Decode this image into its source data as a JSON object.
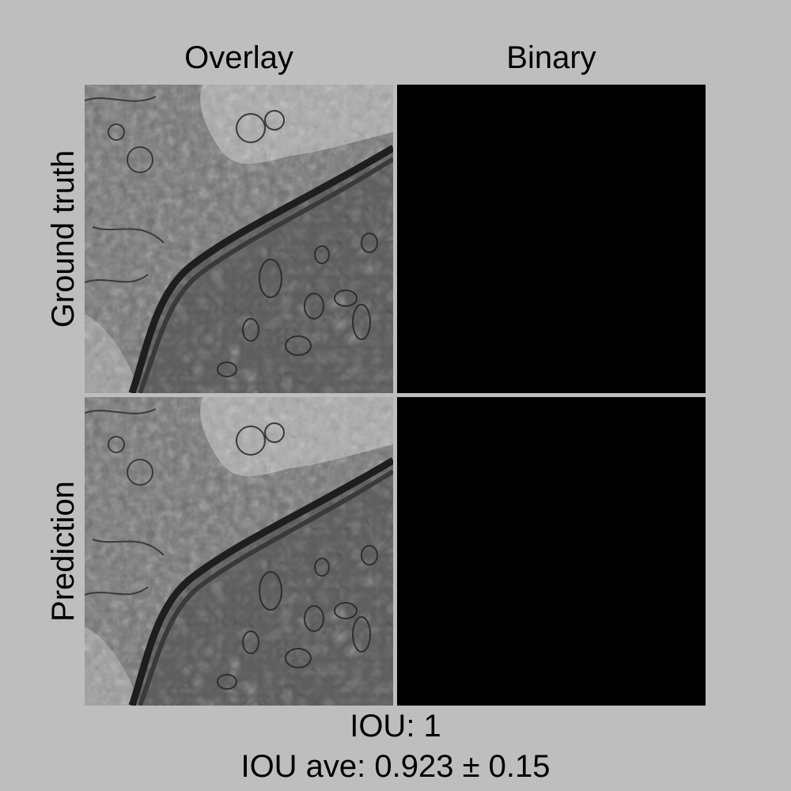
{
  "columns": {
    "overlay": "Overlay",
    "binary": "Binary"
  },
  "rows": {
    "ground_truth": "Ground truth",
    "prediction": "Prediction"
  },
  "metrics": {
    "iou": "IOU: 1",
    "iou_average": "IOU ave: 0.923 ± 0.15"
  },
  "colors": {
    "background": "#bebebe",
    "binary_mask": "#000000",
    "micrograph_base": "#6f6f6f"
  }
}
